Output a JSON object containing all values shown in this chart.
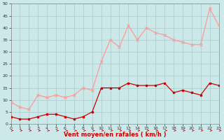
{
  "x": [
    0,
    1,
    2,
    3,
    4,
    5,
    6,
    7,
    8,
    9,
    10,
    11,
    12,
    13,
    14,
    15,
    16,
    17,
    18,
    19,
    20,
    21,
    22,
    23
  ],
  "vent_moyen": [
    3,
    2,
    2,
    3,
    4,
    4,
    3,
    2,
    3,
    5,
    15,
    15,
    15,
    17,
    16,
    16,
    16,
    17,
    13,
    14,
    13,
    12,
    17,
    16
  ],
  "rafales": [
    9,
    7,
    6,
    12,
    11,
    12,
    11,
    12,
    15,
    14,
    26,
    35,
    32,
    41,
    35,
    40,
    38,
    37,
    35,
    34,
    33,
    33,
    48,
    41
  ],
  "bg_color": "#cce8e8",
  "grid_color": "#aacccc",
  "line_moyen_color": "#cc0000",
  "line_rafales_color": "#ff9999",
  "xlabel": "Vent moyen/en rafales ( km/h )",
  "ylim": [
    0,
    50
  ],
  "xlim": [
    0,
    23
  ],
  "yticks": [
    0,
    5,
    10,
    15,
    20,
    25,
    30,
    35,
    40,
    45,
    50
  ],
  "xticks": [
    0,
    1,
    2,
    3,
    4,
    5,
    6,
    7,
    8,
    9,
    10,
    11,
    12,
    13,
    14,
    15,
    16,
    17,
    18,
    19,
    20,
    21,
    22,
    23
  ]
}
